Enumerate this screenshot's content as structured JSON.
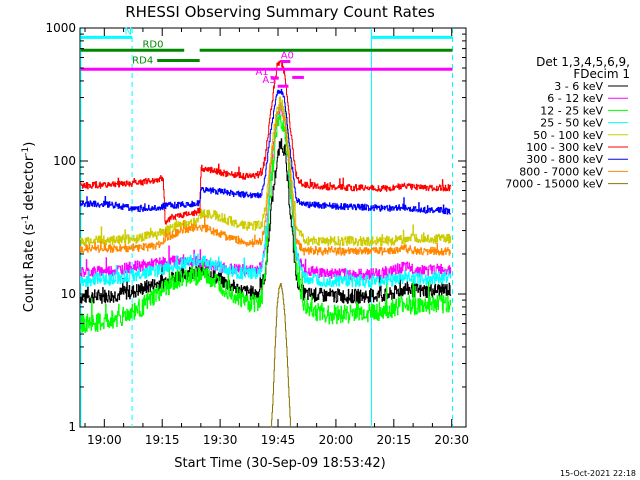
{
  "chart_data": {
    "type": "line",
    "title": "RHESSI Observing Summary Count Rates",
    "xlabel": "Start Time (30-Sep-09 18:53:42)",
    "ylabel_main": "Count Rate (s",
    "ylabel_sup1": "-1",
    "ylabel_mid": " detector",
    "ylabel_sup2": "-1",
    "ylabel_end": ")",
    "date_stamp": "15-Oct-2021 22:18",
    "x_unit": "minutes after 18:53:42",
    "x_range": [
      0,
      100
    ],
    "y_scale": "log",
    "ylim": [
      1,
      1000
    ],
    "x_ticks": [
      {
        "t": 6.3,
        "label": "19:00"
      },
      {
        "t": 21.3,
        "label": "19:15"
      },
      {
        "t": 36.3,
        "label": "19:30"
      },
      {
        "t": 51.3,
        "label": "19:45"
      },
      {
        "t": 66.3,
        "label": "20:00"
      },
      {
        "t": 81.3,
        "label": "20:15"
      },
      {
        "t": 96.3,
        "label": "20:30"
      }
    ],
    "y_ticks": [
      {
        "v": 1,
        "label": "1"
      },
      {
        "v": 10,
        "label": "10"
      },
      {
        "v": 100,
        "label": "100"
      },
      {
        "v": 1000,
        "label": "1000"
      }
    ],
    "legend": {
      "header1": "Det 1,3,4,5,6,9,",
      "header2": "FDecim 1",
      "entries": [
        {
          "label": "3 - 6 keV",
          "color": "#000000"
        },
        {
          "label": "6 - 12 keV",
          "color": "#ff00ff"
        },
        {
          "label": "12 - 25 keV",
          "color": "#00ff00"
        },
        {
          "label": "25 - 50 keV",
          "color": "#00ffff"
        },
        {
          "label": "50 - 100 keV",
          "color": "#cccc00"
        },
        {
          "label": "100 - 300 keV",
          "color": "#ff0000"
        },
        {
          "label": "300 - 800 keV",
          "color": "#0000ff"
        },
        {
          "label": "800 - 7000 keV",
          "color": "#ff8800"
        },
        {
          "label": "7000 - 15000 keV",
          "color": "#8b7500"
        }
      ]
    },
    "series": [
      {
        "name": "3 - 6 keV",
        "color": "#000000",
        "noise": 0.09,
        "points": [
          [
            0,
            9.5
          ],
          [
            8,
            9.7
          ],
          [
            14,
            10.5
          ],
          [
            20,
            12
          ],
          [
            26,
            14
          ],
          [
            30,
            15
          ],
          [
            34,
            14
          ],
          [
            38,
            12
          ],
          [
            42,
            10.5
          ],
          [
            46,
            10
          ],
          [
            48,
            14
          ],
          [
            49.5,
            45
          ],
          [
            51,
            100
          ],
          [
            52,
            140
          ],
          [
            53,
            120
          ],
          [
            54.5,
            40
          ],
          [
            56,
            13
          ],
          [
            58,
            10
          ],
          [
            62,
            9.8
          ],
          [
            70,
            9.6
          ],
          [
            80,
            9.8
          ],
          [
            84,
            11
          ],
          [
            88,
            10.5
          ],
          [
            96,
            10.8
          ]
        ]
      },
      {
        "name": "6 - 12 keV",
        "color": "#ff00ff",
        "noise": 0.07,
        "points": [
          [
            0,
            14.5
          ],
          [
            8,
            15
          ],
          [
            14,
            16
          ],
          [
            20,
            17
          ],
          [
            26,
            18
          ],
          [
            30,
            17.5
          ],
          [
            34,
            16.5
          ],
          [
            38,
            15.5
          ],
          [
            44,
            15
          ],
          [
            47,
            16
          ],
          [
            48,
            25
          ],
          [
            49.5,
            90
          ],
          [
            51,
            220
          ],
          [
            52,
            250
          ],
          [
            53,
            200
          ],
          [
            54.5,
            70
          ],
          [
            56,
            20
          ],
          [
            58,
            15
          ],
          [
            62,
            14.5
          ],
          [
            72,
            14
          ],
          [
            80,
            14.5
          ],
          [
            84,
            16
          ],
          [
            88,
            15
          ],
          [
            96,
            15.5
          ]
        ]
      },
      {
        "name": "12 - 25 keV",
        "color": "#00ff00",
        "noise": 0.12,
        "points": [
          [
            0,
            6
          ],
          [
            6,
            6.1
          ],
          [
            12,
            7
          ],
          [
            16,
            8
          ],
          [
            20,
            10
          ],
          [
            24,
            12
          ],
          [
            28,
            13.5
          ],
          [
            32,
            14
          ],
          [
            36,
            12
          ],
          [
            40,
            10
          ],
          [
            44,
            8.5
          ],
          [
            47,
            9
          ],
          [
            48,
            16
          ],
          [
            49.5,
            70
          ],
          [
            51,
            180
          ],
          [
            52,
            210
          ],
          [
            53,
            170
          ],
          [
            54.5,
            60
          ],
          [
            56,
            16
          ],
          [
            58,
            8
          ],
          [
            64,
            7
          ],
          [
            72,
            7.2
          ],
          [
            80,
            7.5
          ],
          [
            84,
            8.5
          ],
          [
            88,
            8
          ],
          [
            96,
            8.5
          ]
        ]
      },
      {
        "name": "25 - 50 keV",
        "color": "#00ffff",
        "noise": 0.08,
        "points": [
          [
            0,
            12.5
          ],
          [
            8,
            13
          ],
          [
            14,
            14
          ],
          [
            20,
            15
          ],
          [
            26,
            17
          ],
          [
            30,
            18
          ],
          [
            34,
            17
          ],
          [
            38,
            15
          ],
          [
            44,
            14
          ],
          [
            47,
            15
          ],
          [
            48,
            24
          ],
          [
            49.5,
            90
          ],
          [
            51,
            230
          ],
          [
            52,
            260
          ],
          [
            53,
            210
          ],
          [
            54.5,
            70
          ],
          [
            56,
            20
          ],
          [
            58,
            13
          ],
          [
            64,
            12.5
          ],
          [
            72,
            12.5
          ],
          [
            80,
            12.5
          ],
          [
            84,
            13.5
          ],
          [
            88,
            13
          ],
          [
            96,
            13.5
          ]
        ]
      },
      {
        "name": "50 - 100 keV",
        "color": "#cccc00",
        "noise": 0.06,
        "points": [
          [
            0,
            25
          ],
          [
            8,
            25.5
          ],
          [
            14,
            26
          ],
          [
            20,
            28
          ],
          [
            26,
            33
          ],
          [
            30,
            35
          ],
          [
            31,
            40
          ],
          [
            34,
            40
          ],
          [
            38,
            36
          ],
          [
            44,
            32
          ],
          [
            47,
            33
          ],
          [
            48,
            45
          ],
          [
            49.5,
            120
          ],
          [
            51,
            260
          ],
          [
            52,
            290
          ],
          [
            53,
            230
          ],
          [
            54.5,
            90
          ],
          [
            56,
            32
          ],
          [
            58,
            25
          ],
          [
            64,
            25
          ],
          [
            72,
            25
          ],
          [
            80,
            25
          ],
          [
            84,
            26
          ],
          [
            88,
            26
          ],
          [
            96,
            26
          ]
        ]
      },
      {
        "name": "100 - 300 keV",
        "color": "#ff0000",
        "noise": 0.04,
        "points": [
          [
            0,
            65
          ],
          [
            8,
            66
          ],
          [
            14,
            68
          ],
          [
            20,
            72
          ],
          [
            21.5,
            75
          ],
          [
            22,
            35
          ],
          [
            24,
            38
          ],
          [
            28,
            40
          ],
          [
            31,
            42
          ],
          [
            31.3,
            88
          ],
          [
            34,
            85
          ],
          [
            38,
            80
          ],
          [
            44,
            76
          ],
          [
            47,
            80
          ],
          [
            48,
            110
          ],
          [
            49.5,
            250
          ],
          [
            51,
            520
          ],
          [
            52,
            560
          ],
          [
            53,
            450
          ],
          [
            54.5,
            170
          ],
          [
            56,
            75
          ],
          [
            58,
            66
          ],
          [
            64,
            64
          ],
          [
            72,
            63
          ],
          [
            80,
            62
          ],
          [
            84,
            66
          ],
          [
            88,
            63
          ],
          [
            96,
            63
          ]
        ]
      },
      {
        "name": "300 - 800 keV",
        "color": "#0000ff",
        "noise": 0.04,
        "points": [
          [
            0,
            48
          ],
          [
            8,
            47
          ],
          [
            14,
            44
          ],
          [
            20,
            44
          ],
          [
            22,
            46
          ],
          [
            26,
            47
          ],
          [
            30,
            48
          ],
          [
            31,
            49
          ],
          [
            31.3,
            60
          ],
          [
            34,
            60
          ],
          [
            38,
            58
          ],
          [
            44,
            55
          ],
          [
            47,
            56
          ],
          [
            48,
            80
          ],
          [
            49.5,
            180
          ],
          [
            51,
            320
          ],
          [
            52,
            340
          ],
          [
            53,
            280
          ],
          [
            54.5,
            110
          ],
          [
            56,
            52
          ],
          [
            58,
            47
          ],
          [
            64,
            46
          ],
          [
            72,
            45
          ],
          [
            80,
            44
          ],
          [
            84,
            45
          ],
          [
            88,
            43
          ],
          [
            96,
            42
          ]
        ]
      },
      {
        "name": "800 - 7000 keV",
        "color": "#ff8800",
        "noise": 0.05,
        "points": [
          [
            0,
            22
          ],
          [
            8,
            22
          ],
          [
            14,
            22
          ],
          [
            20,
            23
          ],
          [
            22,
            26
          ],
          [
            26,
            30
          ],
          [
            30,
            32
          ],
          [
            31,
            32
          ],
          [
            34,
            30
          ],
          [
            38,
            27
          ],
          [
            44,
            24
          ],
          [
            47,
            25
          ],
          [
            48,
            35
          ],
          [
            49.5,
            100
          ],
          [
            51,
            220
          ],
          [
            52,
            260
          ],
          [
            53,
            200
          ],
          [
            54.5,
            75
          ],
          [
            56,
            25
          ],
          [
            58,
            21
          ],
          [
            64,
            21
          ],
          [
            72,
            21
          ],
          [
            80,
            21
          ],
          [
            84,
            22
          ],
          [
            88,
            21
          ],
          [
            96,
            21
          ]
        ]
      },
      {
        "name": "7000 - 15000 keV",
        "color": "#8b7500",
        "noise": 0.0,
        "points": [
          [
            49.5,
            1.0
          ],
          [
            49.9,
            1.5
          ],
          [
            50.5,
            4
          ],
          [
            51,
            8
          ],
          [
            51.5,
            11
          ],
          [
            52,
            12
          ],
          [
            52.5,
            10
          ],
          [
            53,
            7
          ],
          [
            53.5,
            4
          ],
          [
            54,
            2
          ],
          [
            54.5,
            1.0
          ]
        ]
      }
    ],
    "segments": [
      {
        "label": "N",
        "color": "#00ffff",
        "x0": 0.2,
        "x1": 13.5,
        "level": 850
      },
      {
        "label": "",
        "color": "#00ffff",
        "x0": 75.5,
        "x1": 96.5,
        "level": 850
      },
      {
        "label": "RD0",
        "color": "#008800",
        "x0": 0.2,
        "x1": 27,
        "level": 680
      },
      {
        "label": "",
        "color": "#008800",
        "x0": 31,
        "x1": 96.5,
        "level": 680
      },
      {
        "label": "RD4",
        "color": "#008800",
        "x0": 20,
        "x1": 31,
        "level": 570
      },
      {
        "label": "",
        "color": "#ff00ff",
        "x0": 0.2,
        "x1": 96.5,
        "level": 490
      },
      {
        "label": "A1",
        "color": "#ff00ff",
        "x0": 49.4,
        "x1": 51.5,
        "level": 420
      },
      {
        "label": "A0",
        "color": "#ff00ff",
        "x0": 52,
        "x1": 54.5,
        "level": 560
      },
      {
        "label": "A3",
        "color": "#ff00ff",
        "x0": 51.2,
        "x1": 54.0,
        "level": 365
      },
      {
        "label": "",
        "color": "#ff00ff",
        "x0": 55,
        "x1": 58,
        "level": 425
      }
    ],
    "vlines": [
      {
        "t": 0.2,
        "color": "#00ffff",
        "style": "solid"
      },
      {
        "t": 13.5,
        "color": "#00ffff",
        "style": "dashed"
      },
      {
        "t": 75.5,
        "color": "#00ffff",
        "style": "solid"
      },
      {
        "t": 96.5,
        "color": "#00ffff",
        "style": "dashed"
      }
    ]
  }
}
